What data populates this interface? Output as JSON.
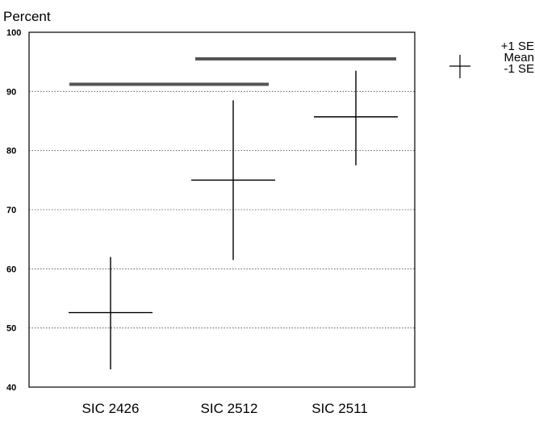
{
  "chart_data": {
    "type": "error-bar",
    "ylabel": "Percent",
    "ylim": [
      40,
      100
    ],
    "yticks": [
      40,
      50,
      60,
      70,
      80,
      90,
      100
    ],
    "grid": true,
    "categories": [
      "SIC 2426",
      "SIC 2512",
      "SIC 2511"
    ],
    "points": [
      {
        "category": "SIC 2426",
        "mean": 52.6,
        "plus1se": 62.0,
        "minus1se": 43.0
      },
      {
        "category": "SIC 2512",
        "mean": 75.0,
        "plus1se": 88.5,
        "minus1se": 61.5
      },
      {
        "category": "SIC 2511",
        "mean": 85.7,
        "plus1se": 93.5,
        "minus1se": 77.5
      }
    ],
    "significance_bars": [
      {
        "from": "SIC 2426",
        "to": "SIC 2512",
        "y": 91.2
      },
      {
        "from": "SIC 2512",
        "to": "SIC 2511",
        "y": 95.5
      }
    ],
    "legend": {
      "position": "right",
      "labels": [
        "+1 SE",
        "Mean",
        "-1 SE"
      ]
    }
  }
}
